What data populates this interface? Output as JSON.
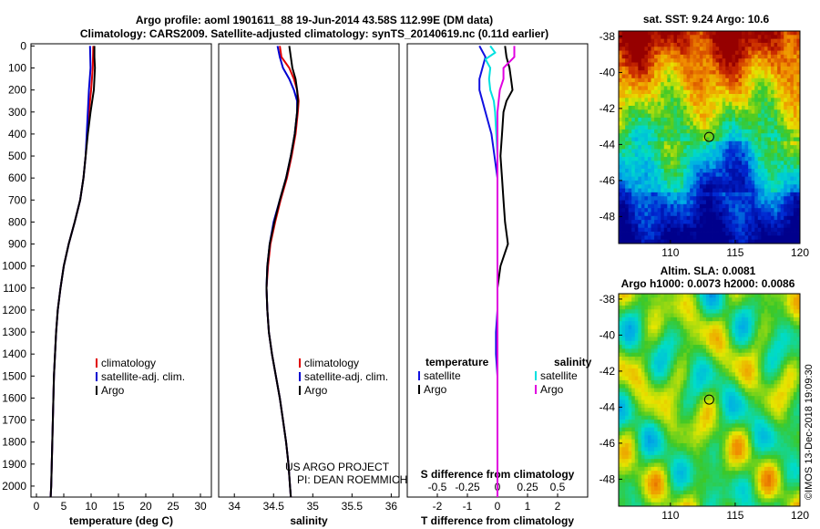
{
  "header": {
    "line1": "Argo profile: aoml 1901611_88 19-Jun-2014 43.58S 112.99E (DM data)",
    "line2": "Climatology: CARS2009. Satellite-adjusted climatology: synTS_20140619.nc (0.11d earlier)"
  },
  "watermark": "©IMOS 13-Dec-2018 19:09:30",
  "credits": {
    "line1": "US ARGO PROJECT",
    "line2": "PI: DEAN ROEMMICH"
  },
  "colors": {
    "climatology": "#e00000",
    "satellite": "#0000d0",
    "argo": "#000000",
    "sat_t": "#1010e0",
    "sat_s": "#00e0e0",
    "argo_s": "#e000e0"
  },
  "chart_data": [
    {
      "type": "line",
      "name": "temperature-profile",
      "xlabel": "temperature (deg C)",
      "xlim": [
        -1,
        32
      ],
      "ylim": [
        2050,
        -10
      ],
      "xticks": [
        0,
        5,
        10,
        15,
        20,
        25,
        30
      ],
      "yticks": [
        0,
        100,
        200,
        300,
        400,
        500,
        600,
        700,
        800,
        900,
        1000,
        1100,
        1200,
        1300,
        1400,
        1500,
        1600,
        1700,
        1800,
        1900,
        2000
      ],
      "legend": [
        "climatology",
        "satellite-adj. clim.",
        "Argo"
      ],
      "series": [
        {
          "name": "climatology",
          "depth": [
            0,
            100,
            200,
            300,
            400,
            500,
            600,
            700,
            800,
            900,
            1000,
            1100,
            1200,
            1300,
            1400,
            1500,
            1600,
            1700,
            1800,
            1900,
            2000,
            2050
          ],
          "values": [
            10.4,
            10.3,
            10.0,
            9.6,
            9.3,
            9.0,
            8.6,
            8.0,
            7.0,
            5.9,
            5.0,
            4.4,
            3.9,
            3.6,
            3.4,
            3.2,
            3.1,
            3.0,
            2.9,
            2.8,
            2.7,
            2.6
          ]
        },
        {
          "name": "satellite-adj. clim.",
          "depth": [
            0,
            100,
            200,
            300,
            400,
            500,
            600,
            700,
            800,
            900,
            1000,
            1100,
            1200,
            1300,
            1400,
            1500,
            1600,
            1700,
            1800,
            1900,
            2000,
            2050
          ],
          "values": [
            9.8,
            9.9,
            9.6,
            9.4,
            9.2,
            9.0,
            8.6,
            8.0,
            7.0,
            5.9,
            5.0,
            4.4,
            3.9,
            3.6,
            3.4,
            3.2,
            3.1,
            3.0,
            2.9,
            2.8,
            2.7,
            2.6
          ]
        },
        {
          "name": "Argo",
          "depth": [
            0,
            50,
            100,
            150,
            200,
            250,
            300,
            400,
            500,
            600,
            700,
            800,
            900,
            1000,
            1100,
            1200,
            1300,
            1400,
            1500,
            1600,
            1700,
            1800,
            1900,
            2000,
            2050
          ],
          "values": [
            10.6,
            10.6,
            10.7,
            10.6,
            10.5,
            10.2,
            9.9,
            9.4,
            9.0,
            8.6,
            8.0,
            7.0,
            5.9,
            5.0,
            4.4,
            3.9,
            3.6,
            3.4,
            3.2,
            3.1,
            3.0,
            2.9,
            2.8,
            2.7,
            2.6
          ]
        }
      ]
    },
    {
      "type": "line",
      "name": "salinity-profile",
      "xlabel": "salinity",
      "xlim": [
        33.8,
        36.1
      ],
      "ylim": [
        2050,
        -10
      ],
      "xticks": [
        34,
        34.5,
        35,
        35.5,
        36
      ],
      "legend": [
        "climatology",
        "satellite-adj. clim.",
        "Argo"
      ],
      "series": [
        {
          "name": "climatology",
          "depth": [
            0,
            50,
            100,
            150,
            200,
            250,
            300,
            400,
            500,
            600,
            700,
            800,
            900,
            1000,
            1100,
            1200,
            1300,
            1400,
            1500,
            1600,
            1700,
            1800,
            1900,
            2000,
            2050
          ],
          "values": [
            34.58,
            34.6,
            34.7,
            34.76,
            34.8,
            34.82,
            34.81,
            34.78,
            34.73,
            34.67,
            34.59,
            34.52,
            34.46,
            34.43,
            34.41,
            34.42,
            34.44,
            34.48,
            34.53,
            34.58,
            34.62,
            34.66,
            34.69,
            34.71,
            34.72
          ]
        },
        {
          "name": "satellite-adj. clim.",
          "depth": [
            0,
            50,
            100,
            150,
            200,
            250,
            300,
            400,
            500,
            600,
            700,
            800,
            900,
            1000,
            1100,
            1200,
            1300,
            1400,
            1500,
            1600,
            1700,
            1800,
            1900,
            2000,
            2050
          ],
          "values": [
            34.55,
            34.58,
            34.62,
            34.7,
            34.76,
            34.8,
            34.8,
            34.77,
            34.72,
            34.66,
            34.58,
            34.5,
            34.45,
            34.42,
            34.41,
            34.42,
            34.44,
            34.48,
            34.53,
            34.58,
            34.62,
            34.66,
            34.69,
            34.71,
            34.72
          ]
        },
        {
          "name": "Argo",
          "depth": [
            0,
            50,
            100,
            150,
            200,
            250,
            300,
            400,
            500,
            600,
            700,
            800,
            900,
            1000,
            1100,
            1200,
            1300,
            1400,
            1500,
            1600,
            1700,
            1800,
            1900,
            2000,
            2050
          ],
          "values": [
            34.7,
            34.72,
            34.74,
            34.78,
            34.8,
            34.81,
            34.8,
            34.77,
            34.72,
            34.66,
            34.58,
            34.51,
            34.45,
            34.42,
            34.41,
            34.42,
            34.44,
            34.48,
            34.53,
            34.58,
            34.62,
            34.66,
            34.69,
            34.71,
            34.72
          ]
        }
      ]
    },
    {
      "type": "line",
      "name": "difference-profile",
      "xlabel": "T difference from climatology",
      "xlabel2": "S difference from climatology",
      "xlim": [
        -3,
        3
      ],
      "ylim": [
        2050,
        -10
      ],
      "xticks": [
        -2,
        -1,
        0,
        1,
        2
      ],
      "xticks2": [
        -0.5,
        -0.25,
        0,
        0.25,
        0.5
      ],
      "xticks2_labels": [
        "-0.5",
        "-0.25",
        "0",
        "0.25",
        "0.5"
      ],
      "legend_t": {
        "header": "temperature",
        "items": [
          "satellite",
          "Argo"
        ]
      },
      "legend_s": {
        "header": "salinity",
        "items": [
          "satellite",
          "Argo"
        ]
      },
      "series": [
        {
          "name": "T satellite",
          "depth": [
            0,
            50,
            100,
            150,
            200,
            250,
            300,
            350,
            400,
            500,
            600,
            700,
            800,
            900,
            1000,
            1100,
            1200,
            1300,
            1400,
            1500,
            1700,
            1800,
            2050
          ],
          "values": [
            -0.6,
            -0.4,
            -0.5,
            -0.6,
            -0.6,
            -0.5,
            -0.4,
            -0.3,
            -0.2,
            -0.1,
            0,
            0,
            0,
            0,
            0,
            0,
            0,
            -0.05,
            -0.05,
            0,
            0,
            0,
            0
          ]
        },
        {
          "name": "T Argo",
          "depth": [
            0,
            50,
            100,
            150,
            200,
            250,
            300,
            400,
            500,
            600,
            700,
            800,
            850,
            900,
            1000,
            1100,
            1200,
            1400,
            1600,
            1800,
            2050
          ],
          "values": [
            0.25,
            0.3,
            0.4,
            0.45,
            0.5,
            0.3,
            0.2,
            0.15,
            0.1,
            0.15,
            0.2,
            0.25,
            0.3,
            0.35,
            0.1,
            0,
            0,
            0,
            0,
            0,
            0
          ]
        },
        {
          "name": "S satellite",
          "depth": [
            0,
            30,
            60,
            100,
            150,
            200,
            250,
            300,
            400,
            500,
            700,
            900,
            1100,
            1300,
            1500,
            1800,
            2050
          ],
          "values": [
            -0.06,
            -0.02,
            -0.1,
            -0.06,
            -0.07,
            -0.06,
            -0.03,
            -0.02,
            -0.01,
            0,
            0,
            0,
            0,
            0,
            0,
            0,
            0
          ]
        },
        {
          "name": "S Argo",
          "depth": [
            0,
            50,
            100,
            150,
            200,
            250,
            300,
            400,
            500,
            700,
            900,
            1100,
            1300,
            1500,
            1800,
            2050
          ],
          "values": [
            0.14,
            0.14,
            0.05,
            0.05,
            0.02,
            0.01,
            0,
            0,
            0,
            0,
            0,
            0,
            0,
            0,
            0,
            0
          ]
        }
      ]
    },
    {
      "type": "heatmap",
      "name": "sst-map",
      "title": "sat. SST: 9.24 Argo: 10.6",
      "xlim": [
        106,
        120
      ],
      "ylim": [
        -49.5,
        -37.7
      ],
      "xticks": [
        110,
        115,
        120
      ],
      "yticks": [
        -38,
        -40,
        -42,
        -44,
        -46,
        -48
      ],
      "marker": {
        "lon": 112.99,
        "lat": -43.58
      }
    },
    {
      "type": "heatmap",
      "name": "sla-map",
      "title": "Altim. SLA: 0.0081",
      "subtitle": "Argo h1000: 0.0073 h2000: 0.0086",
      "xlim": [
        106,
        120
      ],
      "ylim": [
        -49.5,
        -37.7
      ],
      "xticks": [
        110,
        115,
        120
      ],
      "yticks": [
        -38,
        -40,
        -42,
        -44,
        -46,
        -48
      ],
      "marker": {
        "lon": 112.99,
        "lat": -43.58
      }
    }
  ]
}
